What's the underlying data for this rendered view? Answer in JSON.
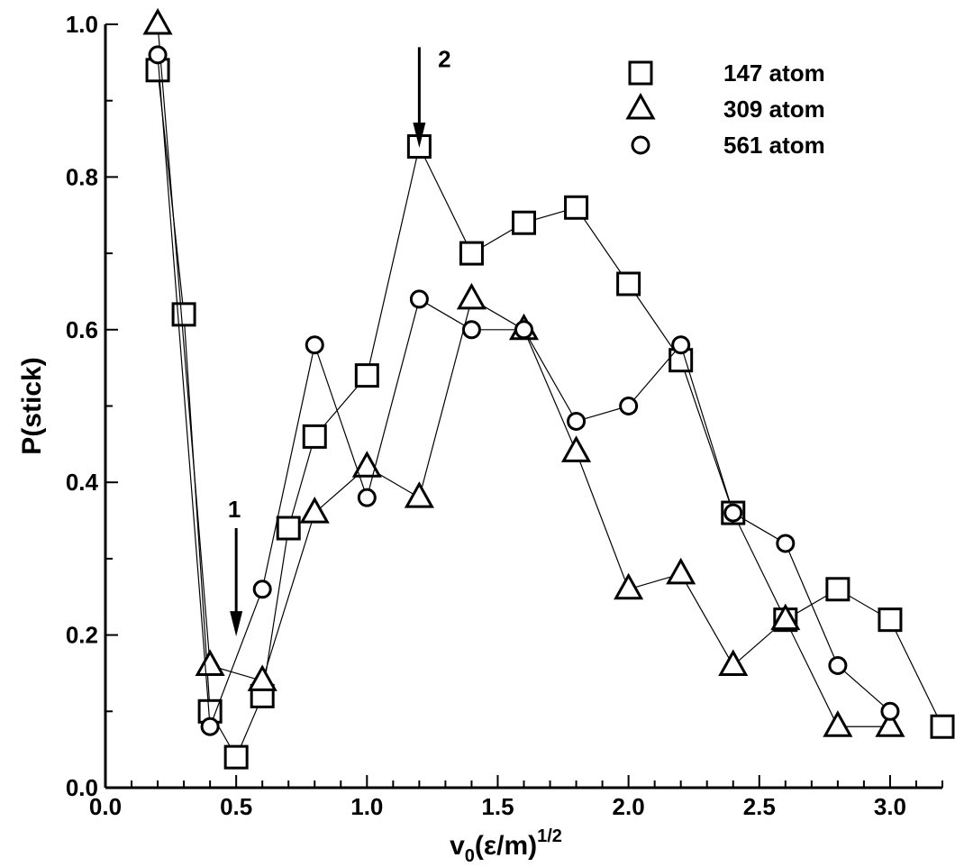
{
  "chart_data": {
    "type": "line",
    "title": "",
    "xlabel": "v0(ε/m)1/2",
    "ylabel": "P(stick)",
    "xlim": [
      0.0,
      3.2
    ],
    "ylim": [
      0.0,
      1.0
    ],
    "grid": false,
    "legend_position": "top-right",
    "x_ticks": [
      "0.0",
      "0.5",
      "1.0",
      "1.5",
      "2.0",
      "2.5",
      "3.0"
    ],
    "y_ticks": [
      "0.0",
      "0.2",
      "0.4",
      "0.6",
      "0.8",
      "1.0"
    ],
    "series": [
      {
        "name": "147 atom",
        "marker": "square",
        "x": [
          0.2,
          0.3,
          0.4,
          0.5,
          0.6,
          0.7,
          0.8,
          1.0,
          1.2,
          1.4,
          1.6,
          1.8,
          2.0,
          2.2,
          2.4,
          2.6,
          2.8,
          3.0,
          3.2
        ],
        "y": [
          0.94,
          0.62,
          0.1,
          0.04,
          0.12,
          0.34,
          0.46,
          0.54,
          0.84,
          0.7,
          0.74,
          0.76,
          0.66,
          0.56,
          0.36,
          0.22,
          0.26,
          0.22,
          0.08
        ]
      },
      {
        "name": "309 atom",
        "marker": "triangle",
        "x": [
          0.2,
          0.4,
          0.6,
          0.8,
          1.0,
          1.2,
          1.4,
          1.6,
          1.8,
          2.0,
          2.2,
          2.4,
          2.6,
          2.8,
          3.0
        ],
        "y": [
          1.0,
          0.16,
          0.14,
          0.36,
          0.42,
          0.38,
          0.64,
          0.6,
          0.44,
          0.26,
          0.28,
          0.16,
          0.22,
          0.08,
          0.08
        ]
      },
      {
        "name": "561 atom",
        "marker": "circle",
        "x": [
          0.2,
          0.4,
          0.6,
          0.8,
          1.0,
          1.2,
          1.4,
          1.6,
          1.8,
          2.0,
          2.2,
          2.4,
          2.6,
          2.8,
          3.0
        ],
        "y": [
          0.96,
          0.08,
          0.26,
          0.58,
          0.38,
          0.64,
          0.6,
          0.6,
          0.48,
          0.5,
          0.58,
          0.36,
          0.32,
          0.16,
          0.1
        ]
      }
    ],
    "annotations": [
      {
        "label": "1",
        "x": 0.5,
        "y_from": 0.34,
        "y_to": 0.21
      },
      {
        "label": "2",
        "x": 1.2,
        "y_from": 0.97,
        "y_to": 0.85
      }
    ]
  }
}
